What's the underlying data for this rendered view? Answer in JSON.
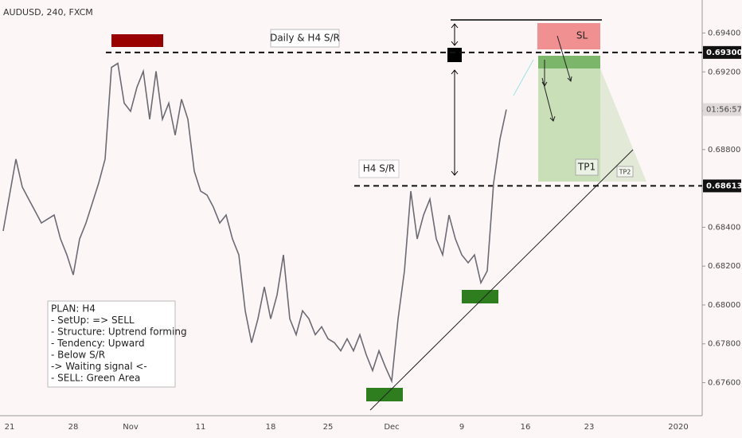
{
  "chart_data": {
    "type": "line",
    "title": "AUDUSD, 240, FXCM",
    "categories": [
      null,
      "21",
      null,
      null,
      null,
      null,
      null,
      null,
      null,
      null,
      null,
      "28",
      null,
      null,
      null,
      null,
      null,
      null,
      null,
      null,
      "Nov",
      null,
      null,
      null,
      null,
      null,
      null,
      null,
      null,
      null,
      null,
      "11",
      null,
      null,
      null,
      null,
      null,
      null,
      null,
      null,
      null,
      null,
      "18",
      null,
      null,
      null,
      null,
      null,
      null,
      null,
      null,
      "25",
      null,
      null,
      null,
      null,
      null,
      null,
      null,
      null,
      null,
      "Dec",
      null,
      null,
      null,
      null,
      null,
      null,
      null,
      null,
      null,
      null,
      "9",
      null,
      null,
      null,
      null,
      null,
      null,
      null,
      null,
      null,
      "16",
      null,
      null,
      null,
      null,
      null,
      null,
      null,
      null,
      null,
      "23",
      null,
      null,
      null,
      null,
      null,
      null,
      null,
      null,
      null,
      null,
      null,
      null,
      null,
      "2020"
    ],
    "series": [
      {
        "name": "AUDUSD",
        "color": "#6b6b73",
        "values": [
          0.68381,
          0.68566,
          0.68751,
          0.68607,
          0.68545,
          0.68484,
          0.68422,
          0.68443,
          0.68463,
          0.6834,
          0.68258,
          0.68155,
          0.6834,
          0.68422,
          0.68525,
          0.68628,
          0.68751,
          0.69223,
          0.69244,
          0.69039,
          0.68997,
          0.69121,
          0.69203,
          0.68956,
          0.69203,
          0.68956,
          0.69039,
          0.68874,
          0.69059,
          0.68956,
          0.68689,
          0.68586,
          0.68566,
          0.68504,
          0.68422,
          0.68463,
          0.6834,
          0.68258,
          0.6797,
          0.67806,
          0.67929,
          0.68093,
          0.67929,
          0.68052,
          0.68258,
          0.67929,
          0.67847,
          0.6797,
          0.67929,
          0.67847,
          0.67888,
          0.67826,
          0.67806,
          0.67764,
          0.67826,
          0.67764,
          0.67847,
          0.67744,
          0.67662,
          0.67764,
          0.67682,
          0.67608,
          0.67929,
          0.68175,
          0.68586,
          0.6834,
          0.68463,
          0.68545,
          0.6834,
          0.68258,
          0.68463,
          0.6834,
          0.68258,
          0.68217,
          0.68258,
          0.68114,
          0.68175,
          0.68628,
          0.68854,
          0.69006,
          null,
          null,
          null,
          null,
          null,
          null,
          null,
          null,
          null,
          null,
          null,
          null,
          null,
          null,
          null,
          null,
          null,
          null,
          null,
          null,
          null,
          null,
          null,
          null,
          null,
          null,
          null
        ]
      }
    ],
    "ylim": [
      0.6743,
      0.6957
    ],
    "yticks": [
      {
        "value": 0.676,
        "label": "0.67600"
      },
      {
        "value": 0.678,
        "label": "0.67800"
      },
      {
        "value": 0.68,
        "label": "0.68000"
      },
      {
        "value": 0.682,
        "label": "0.68200"
      },
      {
        "value": 0.684,
        "label": "0.68400"
      },
      {
        "value": 0.686,
        "label": "0.68600"
      },
      {
        "value": 0.688,
        "label": "0.68800"
      },
      {
        "value": 0.69,
        "label": "0.69000"
      },
      {
        "value": 0.692,
        "label": "0.69200"
      },
      {
        "value": 0.694,
        "label": "0.69400"
      }
    ],
    "levels": [
      {
        "value": 0.693,
        "label": "0.69300"
      },
      {
        "value": 0.68613,
        "label": "0.68613"
      }
    ],
    "countdown": "01:56:57",
    "annotations": {
      "daily_sr": "Daily & H4 S/R",
      "h4_sr": "H4 S/R",
      "sl": "SL",
      "tp1": "TP1",
      "tp2": "TP2"
    },
    "plan": [
      "PLAN: H4",
      "- SetUp: => SELL",
      "- Structure: Uptrend forming",
      "- Tendency: Upward",
      "- Below S/R",
      "-> Waiting signal <-",
      "- SELL: Green Area"
    ]
  }
}
